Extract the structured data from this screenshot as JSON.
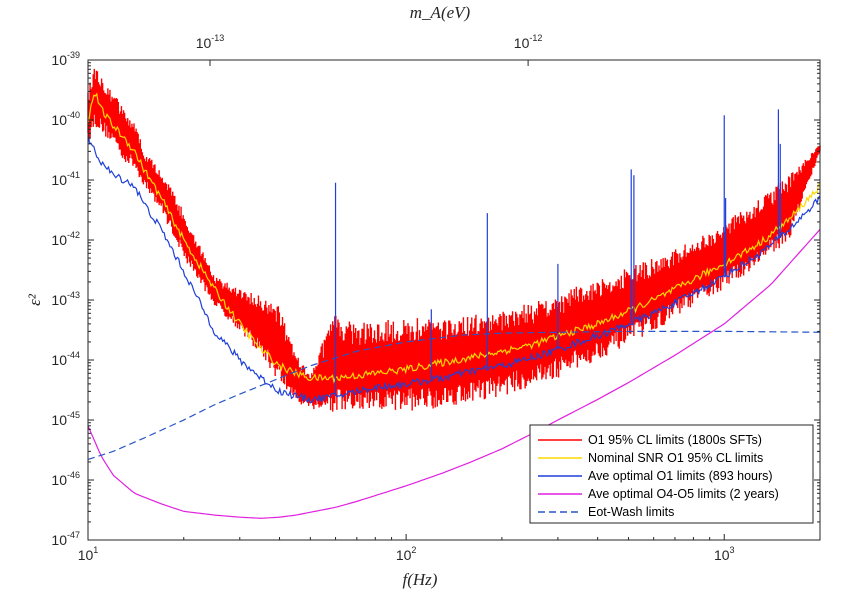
{
  "chart_data": {
    "type": "line",
    "xscale": "log",
    "yscale": "log",
    "xlim": [
      10,
      2000
    ],
    "ylim": [
      1e-47,
      1e-39
    ],
    "xlabel": "f(Hz)",
    "ylabel": "ε²",
    "top_xlabel": "m_A(eV)",
    "x_ticks": [
      {
        "value": 10,
        "base": "10",
        "exp": "1"
      },
      {
        "value": 100,
        "base": "10",
        "exp": "2"
      },
      {
        "value": 1000,
        "base": "10",
        "exp": "3"
      }
    ],
    "y_ticks": [
      {
        "value": 1e-47,
        "base": "10",
        "exp": "-47"
      },
      {
        "value": 1e-46,
        "base": "10",
        "exp": "-46"
      },
      {
        "value": 1e-45,
        "base": "10",
        "exp": "-45"
      },
      {
        "value": 1e-44,
        "base": "10",
        "exp": "-44"
      },
      {
        "value": 1e-43,
        "base": "10",
        "exp": "-43"
      },
      {
        "value": 1e-42,
        "base": "10",
        "exp": "-42"
      },
      {
        "value": 1e-41,
        "base": "10",
        "exp": "-41"
      },
      {
        "value": 1e-40,
        "base": "10",
        "exp": "-40"
      },
      {
        "value": 1e-39,
        "base": "10",
        "exp": "-39"
      }
    ],
    "top_ticks": [
      {
        "freq": 24.18,
        "base": "10",
        "exp": "-13"
      },
      {
        "freq": 241.8,
        "base": "10",
        "exp": "-12"
      }
    ],
    "legend_position": "bottom-right",
    "grid": false,
    "series": [
      {
        "name": "O1 95% CL limits (1800s SFTs)",
        "color": "#ff0000",
        "style": "band",
        "x": [
          10,
          10.5,
          11,
          12,
          13,
          14,
          15,
          17,
          20,
          25,
          30,
          35,
          40,
          45,
          50,
          60,
          70,
          80,
          100,
          130,
          160,
          200,
          250,
          300,
          350,
          400,
          500,
          600,
          700,
          800,
          1000,
          1300,
          1600,
          2000
        ],
        "upper": [
          3e-40,
          9e-40,
          6e-40,
          3e-40,
          1.5e-40,
          1e-40,
          3e-41,
          1.5e-41,
          3e-42,
          2.5e-43,
          1.5e-43,
          1.2e-43,
          8e-44,
          1.2e-44,
          7e-45,
          6e-44,
          4e-44,
          4.5e-44,
          5e-44,
          5e-44,
          5.5e-44,
          7e-44,
          9e-44,
          1.2e-43,
          1.8e-43,
          2.3e-43,
          3.5e-43,
          5e-43,
          7e-43,
          1e-42,
          2e-42,
          5e-42,
          1.2e-41,
          4e-41
        ],
        "lower": [
          4e-41,
          8e-41,
          6e-41,
          4e-41,
          2e-41,
          1.5e-41,
          8e-42,
          3e-42,
          5e-43,
          8e-44,
          3e-44,
          1.2e-44,
          4e-45,
          2e-45,
          1.5e-45,
          1.3e-45,
          1.3e-45,
          1.3e-45,
          1.4e-45,
          1.6e-45,
          2e-45,
          2.5e-45,
          3.5e-45,
          5e-45,
          7e-45,
          1e-44,
          1.8e-44,
          3e-44,
          5e-44,
          8e-44,
          1.5e-43,
          4e-43,
          1e-42,
          3e-41
        ]
      },
      {
        "name": "Nominal SNR O1 95% CL limits",
        "color": "#ffd700",
        "style": "solid",
        "x": [
          10,
          10.5,
          11,
          12,
          13,
          14,
          15,
          17,
          20,
          25,
          30,
          35,
          40,
          45,
          50,
          60,
          70,
          80,
          100,
          130,
          160,
          200,
          250,
          300,
          350,
          400,
          500,
          600,
          700,
          800,
          1000,
          1300,
          1600,
          2000
        ],
        "y": [
          1e-40,
          3e-40,
          1.5e-40,
          8e-41,
          5e-41,
          3e-41,
          1.5e-41,
          5e-42,
          1e-42,
          1.5e-43,
          4e-44,
          1.5e-44,
          8e-45,
          6e-45,
          5e-45,
          5e-45,
          5.5e-45,
          6e-45,
          7e-45,
          9e-45,
          1.1e-44,
          1.4e-44,
          1.8e-44,
          2.5e-44,
          3.2e-44,
          4e-44,
          6.5e-44,
          1e-43,
          1.5e-43,
          2.2e-43,
          4e-43,
          9e-43,
          2.2e-42,
          8e-42
        ]
      },
      {
        "name": "Ave optimal O1 limits (893 hours)",
        "color": "#1f3fd8",
        "style": "solid",
        "x": [
          10,
          10.5,
          11,
          12,
          13,
          14,
          15,
          17,
          20,
          25,
          30,
          35,
          40,
          45,
          50,
          60,
          70,
          80,
          100,
          130,
          160,
          200,
          250,
          300,
          350,
          400,
          500,
          600,
          700,
          800,
          1000,
          1300,
          1600,
          2000
        ],
        "y": [
          5e-41,
          3e-41,
          2e-41,
          1.2e-41,
          1e-41,
          8e-42,
          4e-42,
          1.5e-42,
          3e-43,
          3e-44,
          1e-44,
          5e-45,
          3e-45,
          2.5e-45,
          2.2e-45,
          2.5e-45,
          3e-45,
          3.5e-45,
          4e-45,
          5e-45,
          6.5e-45,
          8e-45,
          1.1e-44,
          1.5e-44,
          2e-44,
          2.5e-44,
          4e-44,
          6e-44,
          9e-44,
          1.3e-43,
          2.5e-43,
          6e-43,
          1.5e-42,
          5e-42
        ]
      },
      {
        "name": "Ave optimal O4-O5 limits (2 years)",
        "color": "#e020e0",
        "style": "solid",
        "x": [
          10,
          11,
          12,
          14,
          17,
          20,
          25,
          30,
          35,
          40,
          45,
          50,
          60,
          70,
          80,
          100,
          130,
          160,
          200,
          250,
          300,
          400,
          500,
          700,
          1000,
          1400,
          2000
        ],
        "y": [
          8e-46,
          2.5e-46,
          1.2e-46,
          6e-47,
          4e-47,
          3e-47,
          2.6e-47,
          2.4e-47,
          2.3e-47,
          2.4e-47,
          2.6e-47,
          2.9e-47,
          3.5e-47,
          4.4e-47,
          5.5e-47,
          8e-47,
          1.3e-46,
          2e-46,
          3.3e-46,
          6e-46,
          1e-45,
          2.2e-45,
          4.2e-45,
          1.2e-44,
          4e-44,
          1.8e-43,
          1.5e-42
        ]
      },
      {
        "name": "Eot-Wash limits",
        "color": "#2a55c8",
        "style": "dashed",
        "x": [
          10,
          12,
          15,
          20,
          25,
          30,
          40,
          50,
          70,
          100,
          150,
          200,
          300,
          500,
          1000,
          2000
        ],
        "y": [
          2.2e-46,
          3e-46,
          5e-46,
          1e-45,
          1.8e-45,
          2.7e-45,
          5e-45,
          8e-45,
          1.4e-44,
          2e-44,
          2.6e-44,
          2.8e-44,
          2.9e-44,
          3e-44,
          3e-44,
          2.9e-44
        ]
      }
    ],
    "spikes": [
      {
        "x": 60,
        "y": 9e-42
      },
      {
        "x": 120,
        "y": 7e-44
      },
      {
        "x": 180,
        "y": 2.8e-42
      },
      {
        "x": 300,
        "y": 4e-43
      },
      {
        "x": 510,
        "y": 1.5e-41
      },
      {
        "x": 520,
        "y": 1.2e-41
      },
      {
        "x": 1000,
        "y": 1.2e-40
      },
      {
        "x": 1010,
        "y": 5e-42
      },
      {
        "x": 1480,
        "y": 1.5e-40
      },
      {
        "x": 1500,
        "y": 4e-41
      }
    ]
  }
}
